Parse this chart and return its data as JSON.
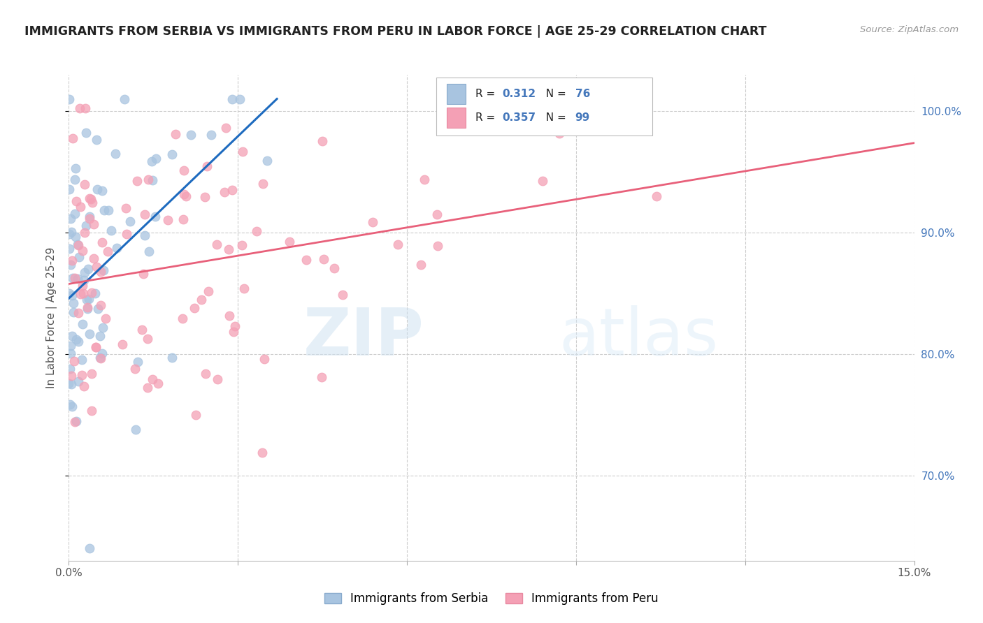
{
  "title": "IMMIGRANTS FROM SERBIA VS IMMIGRANTS FROM PERU IN LABOR FORCE | AGE 25-29 CORRELATION CHART",
  "source": "Source: ZipAtlas.com",
  "ylabel": "In Labor Force | Age 25-29",
  "xlim": [
    0.0,
    0.15
  ],
  "ylim": [
    0.63,
    1.03
  ],
  "xtick_positions": [
    0.0,
    0.03,
    0.06,
    0.09,
    0.12,
    0.15
  ],
  "xticklabels": [
    "0.0%",
    "",
    "",
    "",
    "",
    "15.0%"
  ],
  "ytick_positions": [
    0.7,
    0.8,
    0.9,
    1.0
  ],
  "yticklabels_right": [
    "70.0%",
    "80.0%",
    "90.0%",
    "100.0%"
  ],
  "serbia_color": "#a8c4e0",
  "peru_color": "#f4a0b5",
  "serbia_line_color": "#1e6bbf",
  "peru_line_color": "#e8607a",
  "serbia_R": 0.312,
  "serbia_N": 76,
  "peru_R": 0.357,
  "peru_N": 99,
  "legend_serbia_label": "Immigrants from Serbia",
  "legend_peru_label": "Immigrants from Peru",
  "watermark_zip": "ZIP",
  "watermark_atlas": "atlas",
  "background_color": "#ffffff",
  "grid_color": "#cccccc",
  "title_color": "#222222",
  "axis_label_color": "#555555",
  "right_tick_color": "#4477bb",
  "serbia_seed": 42,
  "peru_seed": 77
}
